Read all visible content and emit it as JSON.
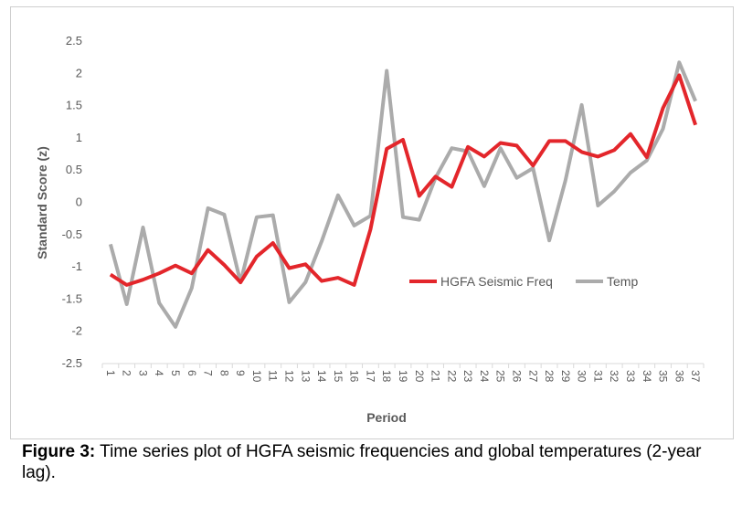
{
  "caption": {
    "label": "Figure 3:",
    "text": " Time series plot of HGFA seismic frequencies and global temperatures (2-year lag)."
  },
  "colors": {
    "seismic": "#e3262b",
    "temp": "#ababab",
    "axis": "#d9d9d9",
    "text": "#595959"
  },
  "chart_data": {
    "type": "line",
    "title": "",
    "xlabel": "Period",
    "ylabel": "Standard Score (z)",
    "ylim": [
      -2.5,
      2.5
    ],
    "yticks": [
      2.5,
      2,
      1.5,
      1,
      0.5,
      0,
      -0.5,
      -1,
      -1.5,
      -2,
      -2.5
    ],
    "yticklabels": [
      "2.5",
      "2",
      "1.5",
      "1",
      "0.5",
      "0",
      "-0.5",
      "-1",
      "-1.5",
      "-2",
      "-2.5"
    ],
    "categories": [
      "1",
      "2",
      "3",
      "4",
      "5",
      "6",
      "7",
      "8",
      "9",
      "10",
      "11",
      "12",
      "13",
      "14",
      "15",
      "16",
      "17",
      "18",
      "19",
      "20",
      "21",
      "22",
      "23",
      "24",
      "25",
      "26",
      "27",
      "28",
      "29",
      "30",
      "31",
      "32",
      "33",
      "34",
      "35",
      "36",
      "37"
    ],
    "grid": false,
    "legend_position": "inside-bottom-right",
    "series": [
      {
        "name": "HGFA Seismic Freq",
        "color": "#e3262b",
        "values": [
          -1.12,
          -1.28,
          -1.2,
          -1.1,
          -0.98,
          -1.1,
          -0.74,
          -0.97,
          -1.24,
          -0.84,
          -0.63,
          -1.02,
          -0.96,
          -1.22,
          -1.17,
          -1.28,
          -0.42,
          0.83,
          0.97,
          0.1,
          0.4,
          0.24,
          0.86,
          0.71,
          0.92,
          0.88,
          0.57,
          0.95,
          0.95,
          0.78,
          0.71,
          0.81,
          1.06,
          0.7,
          1.46,
          1.97,
          1.2
        ]
      },
      {
        "name": "Temp",
        "color": "#ababab",
        "values": [
          -0.65,
          -1.58,
          -0.39,
          -1.56,
          -1.93,
          -1.33,
          -0.09,
          -0.19,
          -1.24,
          -0.23,
          -0.2,
          -1.55,
          -1.24,
          -0.6,
          0.11,
          -0.36,
          -0.21,
          2.04,
          -0.23,
          -0.27,
          0.38,
          0.84,
          0.79,
          0.25,
          0.84,
          0.38,
          0.53,
          -0.59,
          0.34,
          1.51,
          -0.05,
          0.17,
          0.46,
          0.65,
          1.14,
          2.17,
          1.57
        ]
      }
    ]
  }
}
